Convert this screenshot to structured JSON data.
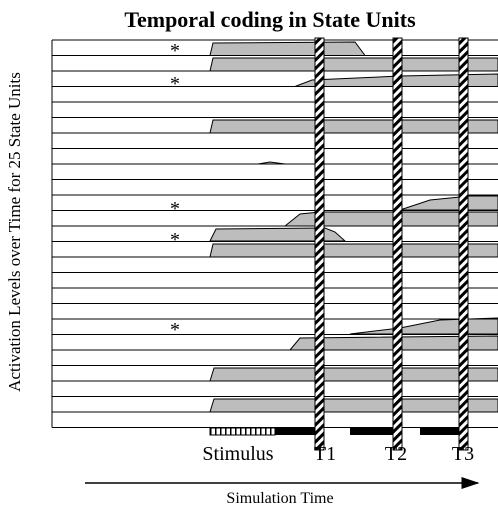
{
  "title": "Temporal coding in State Units",
  "y_axis_label": "Activation Levels over Time for 25 State Units",
  "x_axis_label": "Simulation Time",
  "markers": [
    "*",
    "*",
    "*",
    "*",
    "*"
  ],
  "timeline_labels": [
    "Stimulus",
    "T1",
    "T2",
    "T3"
  ]
}
